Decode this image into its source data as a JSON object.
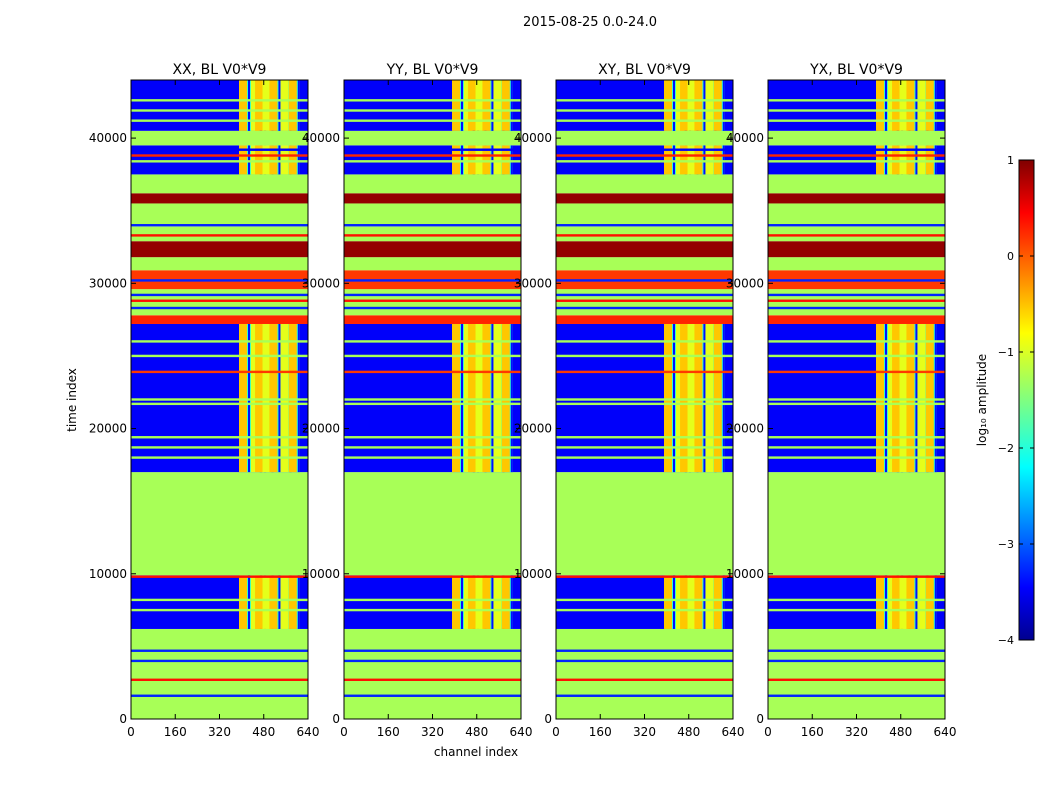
{
  "suptitle": "2015-08-25 0.0-24.0",
  "xlabel": "channel index",
  "ylabel": "time index",
  "chart_data": {
    "type": "heatmap",
    "colormap": "jet",
    "xlim": [
      0,
      640
    ],
    "ylim": [
      0,
      44000
    ],
    "xticks": [
      0,
      160,
      320,
      480,
      640
    ],
    "yticks": [
      0,
      10000,
      20000,
      30000,
      40000
    ],
    "panels": [
      {
        "title": "XX, BL V0*V9",
        "rfi_columns": [
          405,
          448,
          463,
          490,
          515,
          555,
          585
        ]
      },
      {
        "title": "YY, BL V0*V9",
        "rfi_columns": [
          405,
          448,
          463,
          490,
          515,
          555,
          585
        ]
      },
      {
        "title": "XY, BL V0*V9",
        "rfi_columns": [
          405,
          448,
          463,
          490,
          515,
          555,
          585
        ]
      },
      {
        "title": "YX, BL V0*V9",
        "rfi_columns": [
          405,
          448,
          463,
          490,
          515,
          555,
          585
        ]
      }
    ],
    "time_segments": [
      {
        "t0": 0,
        "t1": 6200,
        "level": -1.3,
        "kind": "flagged"
      },
      {
        "t0": 6200,
        "t1": 9900,
        "level": -3.4,
        "kind": "data"
      },
      {
        "t0": 9900,
        "t1": 17000,
        "level": -1.3,
        "kind": "flagged"
      },
      {
        "t0": 17000,
        "t1": 27200,
        "level": -3.4,
        "kind": "data"
      },
      {
        "t0": 27200,
        "t1": 27800,
        "level": 0.2,
        "kind": "flagged"
      },
      {
        "t0": 27800,
        "t1": 29600,
        "level": -1.3,
        "kind": "flagged"
      },
      {
        "t0": 29600,
        "t1": 30900,
        "level": 0.1,
        "kind": "flagged"
      },
      {
        "t0": 30900,
        "t1": 31800,
        "level": -1.3,
        "kind": "flagged"
      },
      {
        "t0": 31800,
        "t1": 32900,
        "level": 0.9,
        "kind": "flagged"
      },
      {
        "t0": 32900,
        "t1": 33900,
        "level": -1.3,
        "kind": "flagged"
      },
      {
        "t0": 33900,
        "t1": 35500,
        "level": -1.3,
        "kind": "flagged"
      },
      {
        "t0": 35500,
        "t1": 36200,
        "level": 0.9,
        "kind": "flagged"
      },
      {
        "t0": 36200,
        "t1": 37500,
        "level": -1.3,
        "kind": "flagged"
      },
      {
        "t0": 37500,
        "t1": 39500,
        "level": -3.4,
        "kind": "data"
      },
      {
        "t0": 39500,
        "t1": 40500,
        "level": -1.3,
        "kind": "flagged"
      },
      {
        "t0": 40500,
        "t1": 44000,
        "level": -3.4,
        "kind": "data"
      }
    ],
    "horizontal_lines": [
      {
        "t": 1600,
        "level": -3.2
      },
      {
        "t": 2700,
        "level": 0.3
      },
      {
        "t": 4000,
        "level": -3.2
      },
      {
        "t": 4700,
        "level": -3.2
      },
      {
        "t": 7500,
        "level": -1.3
      },
      {
        "t": 8200,
        "level": -1.3
      },
      {
        "t": 9800,
        "level": 0.3
      },
      {
        "t": 18000,
        "level": -1.3
      },
      {
        "t": 18700,
        "level": -1.3
      },
      {
        "t": 19400,
        "level": -1.3
      },
      {
        "t": 21700,
        "level": -1.3
      },
      {
        "t": 22000,
        "level": -1.3
      },
      {
        "t": 23900,
        "level": 0.1
      },
      {
        "t": 25000,
        "level": -1.3
      },
      {
        "t": 26000,
        "level": -1.3
      },
      {
        "t": 28300,
        "level": -3.2
      },
      {
        "t": 28800,
        "level": 0.3
      },
      {
        "t": 29200,
        "level": -3.2
      },
      {
        "t": 30200,
        "level": -3.2
      },
      {
        "t": 33300,
        "level": 0.3
      },
      {
        "t": 34000,
        "level": -3.2
      },
      {
        "t": 38400,
        "level": -1.3
      },
      {
        "t": 38800,
        "level": 0.2
      },
      {
        "t": 39200,
        "level": -3.4
      },
      {
        "t": 41200,
        "level": -1.3
      },
      {
        "t": 41900,
        "level": -1.3
      },
      {
        "t": 42600,
        "level": -1.3
      }
    ],
    "colorbar": {
      "label": "log₁₀ amplitude",
      "vmin": -4,
      "vmax": 1,
      "ticks": [
        -4,
        -3,
        -2,
        -1,
        0,
        1
      ]
    }
  }
}
